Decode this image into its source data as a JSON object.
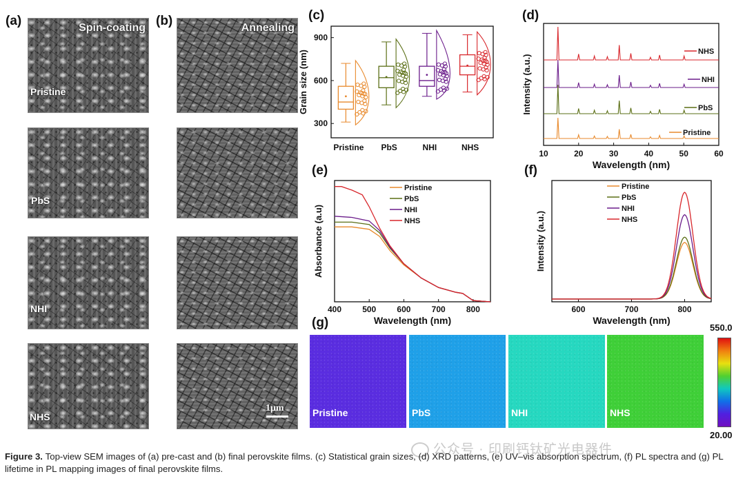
{
  "panels": {
    "a": {
      "label": "(a)",
      "header": "Spin-coating"
    },
    "b": {
      "label": "(b)",
      "header": "Annealing",
      "scale_bar": "1μm"
    },
    "c": {
      "label": "(c)"
    },
    "d": {
      "label": "(d)"
    },
    "e": {
      "label": "(e)"
    },
    "f": {
      "label": "(f)"
    },
    "g": {
      "label": "(g)"
    }
  },
  "samples": [
    "Pristine",
    "PbS",
    "NHI",
    "NHS"
  ],
  "colors": {
    "Pristine": "#e8892b",
    "PbS": "#5a6e14",
    "NHI": "#6a1b8a",
    "NHS": "#d8262b"
  },
  "chart_data": [
    {
      "id": "c",
      "type": "box",
      "ylabel": "Grain size (nm)",
      "categories": [
        "Pristine",
        "PbS",
        "NHI",
        "NHS"
      ],
      "yticks": [
        300,
        600,
        900
      ],
      "ylim": [
        200,
        980
      ],
      "boxes": [
        {
          "name": "Pristine",
          "min": 310,
          "q1": 400,
          "median": 450,
          "q3": 560,
          "max": 720,
          "mean": 490
        },
        {
          "name": "PbS",
          "min": 430,
          "q1": 550,
          "median": 620,
          "q3": 700,
          "max": 870,
          "mean": 625
        },
        {
          "name": "NHI",
          "min": 490,
          "q1": 560,
          "median": 600,
          "q3": 700,
          "max": 930,
          "mean": 640
        },
        {
          "name": "NHS",
          "min": 520,
          "q1": 640,
          "median": 700,
          "q3": 780,
          "max": 920,
          "mean": 705
        }
      ]
    },
    {
      "id": "d",
      "type": "line",
      "xlabel": "Wavelength (nm)",
      "ylabel": "Intensity (a.u.)",
      "xticks": [
        10,
        20,
        30,
        40,
        50,
        60
      ],
      "xlim": [
        10,
        60
      ],
      "series": [
        {
          "name": "NHS"
        },
        {
          "name": "NHI"
        },
        {
          "name": "PbS"
        },
        {
          "name": "Pristine"
        }
      ],
      "peaks": [
        14.1,
        20.0,
        24.5,
        28.2,
        31.6,
        34.9,
        40.5,
        43.1,
        50.1
      ]
    },
    {
      "id": "e",
      "type": "line",
      "xlabel": "Wavelength (nm)",
      "ylabel": "Absorbance (a.u)",
      "xticks": [
        400,
        500,
        600,
        700,
        800
      ],
      "xlim": [
        400,
        850
      ],
      "series": [
        {
          "name": "Pristine",
          "x": [
            400,
            450,
            500,
            530,
            560,
            600,
            650,
            700,
            750,
            770,
            800,
            850
          ],
          "y": [
            0.63,
            0.63,
            0.61,
            0.55,
            0.43,
            0.31,
            0.2,
            0.12,
            0.08,
            0.07,
            0.01,
            0.0
          ]
        },
        {
          "name": "PbS",
          "x": [
            400,
            450,
            500,
            530,
            560,
            600,
            650,
            700,
            750,
            770,
            800,
            850
          ],
          "y": [
            0.67,
            0.67,
            0.65,
            0.58,
            0.45,
            0.32,
            0.2,
            0.12,
            0.08,
            0.07,
            0.01,
            0.0
          ]
        },
        {
          "name": "NHI",
          "x": [
            400,
            450,
            500,
            530,
            560,
            600,
            650,
            700,
            750,
            770,
            800,
            850
          ],
          "y": [
            0.72,
            0.71,
            0.68,
            0.6,
            0.46,
            0.32,
            0.2,
            0.12,
            0.08,
            0.07,
            0.01,
            0.0
          ]
        },
        {
          "name": "NHS",
          "x": [
            400,
            420,
            450,
            480,
            500,
            530,
            560,
            600,
            650,
            700,
            750,
            770,
            800,
            850
          ],
          "y": [
            0.97,
            0.97,
            0.94,
            0.9,
            0.8,
            0.62,
            0.47,
            0.32,
            0.2,
            0.12,
            0.08,
            0.07,
            0.01,
            0.0
          ]
        }
      ]
    },
    {
      "id": "f",
      "type": "line",
      "xlabel": "Wavelength (nm)",
      "ylabel": "Intensity (a.u.)",
      "xticks": [
        600,
        700,
        800
      ],
      "xlim": [
        550,
        850
      ],
      "series": [
        {
          "name": "Pristine",
          "peak": 0.53
        },
        {
          "name": "PbS",
          "peak": 0.58
        },
        {
          "name": "NHI",
          "peak": 0.79
        },
        {
          "name": "NHS",
          "peak": 1.0
        }
      ],
      "center": 800,
      "width": 22
    },
    {
      "id": "g",
      "type": "heatmap",
      "colorbar_max": "550.0",
      "colorbar_min": "20.00",
      "tiles": [
        {
          "name": "Pristine",
          "color": "#5a2de0"
        },
        {
          "name": "PbS",
          "color": "#1fa0e8"
        },
        {
          "name": "NHI",
          "color": "#26d8c0"
        },
        {
          "name": "NHS",
          "color": "#3fcf38"
        }
      ]
    }
  ],
  "watermark": "公众号 · 印刷钙钛矿光电器件",
  "caption": {
    "lead": "Figure 3.",
    "text": "Top-view SEM images of (a) pre-cast and (b) final perovskite films. (c) Statistical grain sizes, (d) XRD patterns, (e) UV–vis absorption spectrum, (f) PL spectra and (g) PL lifetime in PL mapping images of final perovskite films."
  }
}
